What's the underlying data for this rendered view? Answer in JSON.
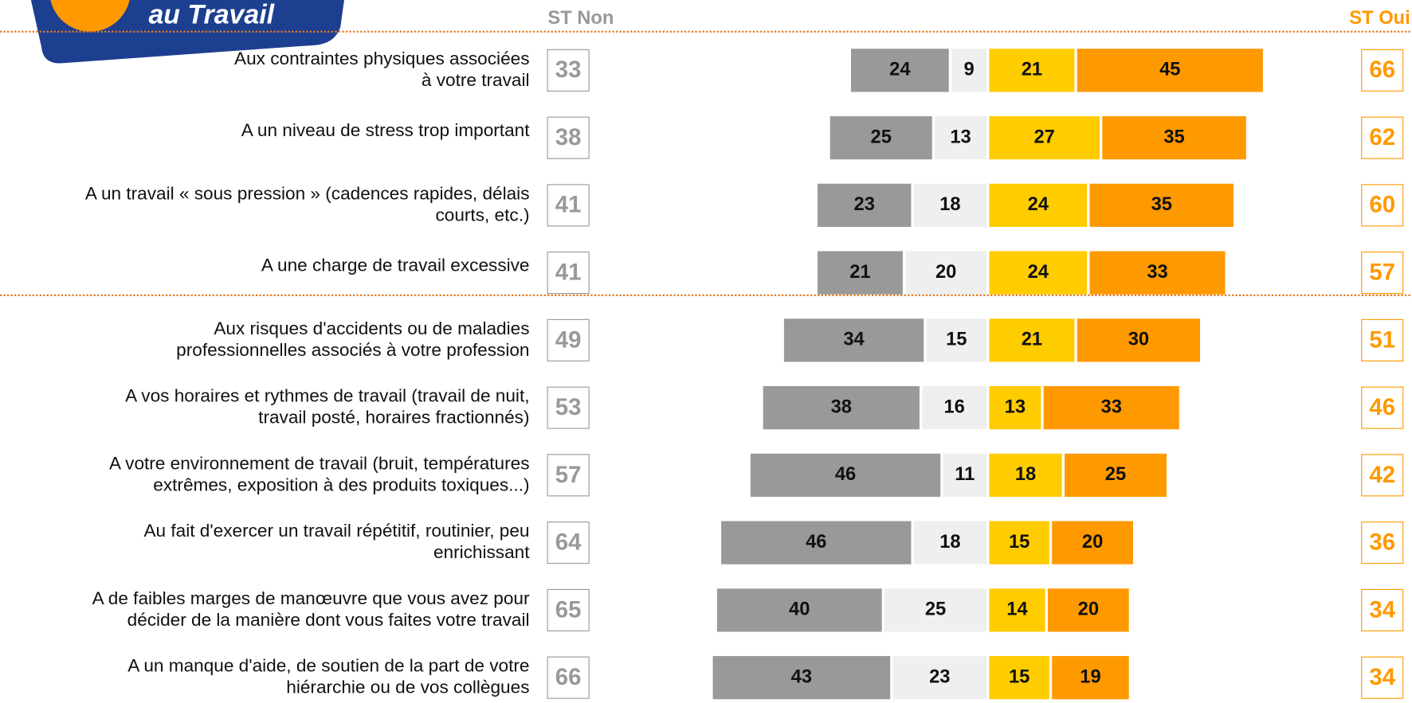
{
  "logo": "au Travail",
  "chart_data": {
    "type": "diverging_bar",
    "left_header": "ST Non",
    "right_header": "ST Oui",
    "categories": [
      [
        "Aux contraintes physiques associées",
        "à votre travail"
      ],
      [
        "A un niveau de stress trop important"
      ],
      [
        "A un travail « sous pression » (cadences rapides, délais",
        "courts, etc.)"
      ],
      [
        "A  une charge de travail excessive"
      ],
      [
        "Aux risques d'accidents ou de maladies",
        "professionnelles associés à votre profession"
      ],
      [
        "A vos horaires et rythmes de travail (travail de nuit,",
        "travail posté, horaires fractionnés)"
      ],
      [
        "A votre environnement de travail (bruit, températures",
        "extrêmes, exposition à des produits toxiques...)"
      ],
      [
        "Au fait d'exercer un travail répétitif, routinier, peu",
        "enrichissant"
      ],
      [
        "A  de faibles marges de manœuvre que vous avez pour",
        "décider de la manière dont vous faites votre travail"
      ],
      [
        "A un manque d'aide, de soutien de la part de votre",
        "hiérarchie ou de vos collègues"
      ]
    ],
    "series": [
      {
        "color": "#999999",
        "side": "left",
        "values": [
          24,
          25,
          23,
          21,
          34,
          38,
          46,
          46,
          40,
          43
        ]
      },
      {
        "color": "#efefef",
        "side": "left",
        "values": [
          9,
          13,
          18,
          20,
          15,
          16,
          11,
          18,
          25,
          23
        ]
      },
      {
        "color": "#ffcc00",
        "side": "right",
        "values": [
          21,
          27,
          24,
          24,
          21,
          13,
          18,
          15,
          14,
          15
        ]
      },
      {
        "color": "#ff9900",
        "side": "right",
        "values": [
          45,
          35,
          35,
          33,
          30,
          33,
          25,
          20,
          20,
          19
        ]
      }
    ],
    "left_totals": [
      33,
      38,
      41,
      41,
      49,
      53,
      57,
      64,
      65,
      66
    ],
    "right_totals": [
      66,
      62,
      60,
      57,
      51,
      46,
      42,
      36,
      34,
      34
    ],
    "left_color": "#999999",
    "right_color": "#ff9900"
  }
}
